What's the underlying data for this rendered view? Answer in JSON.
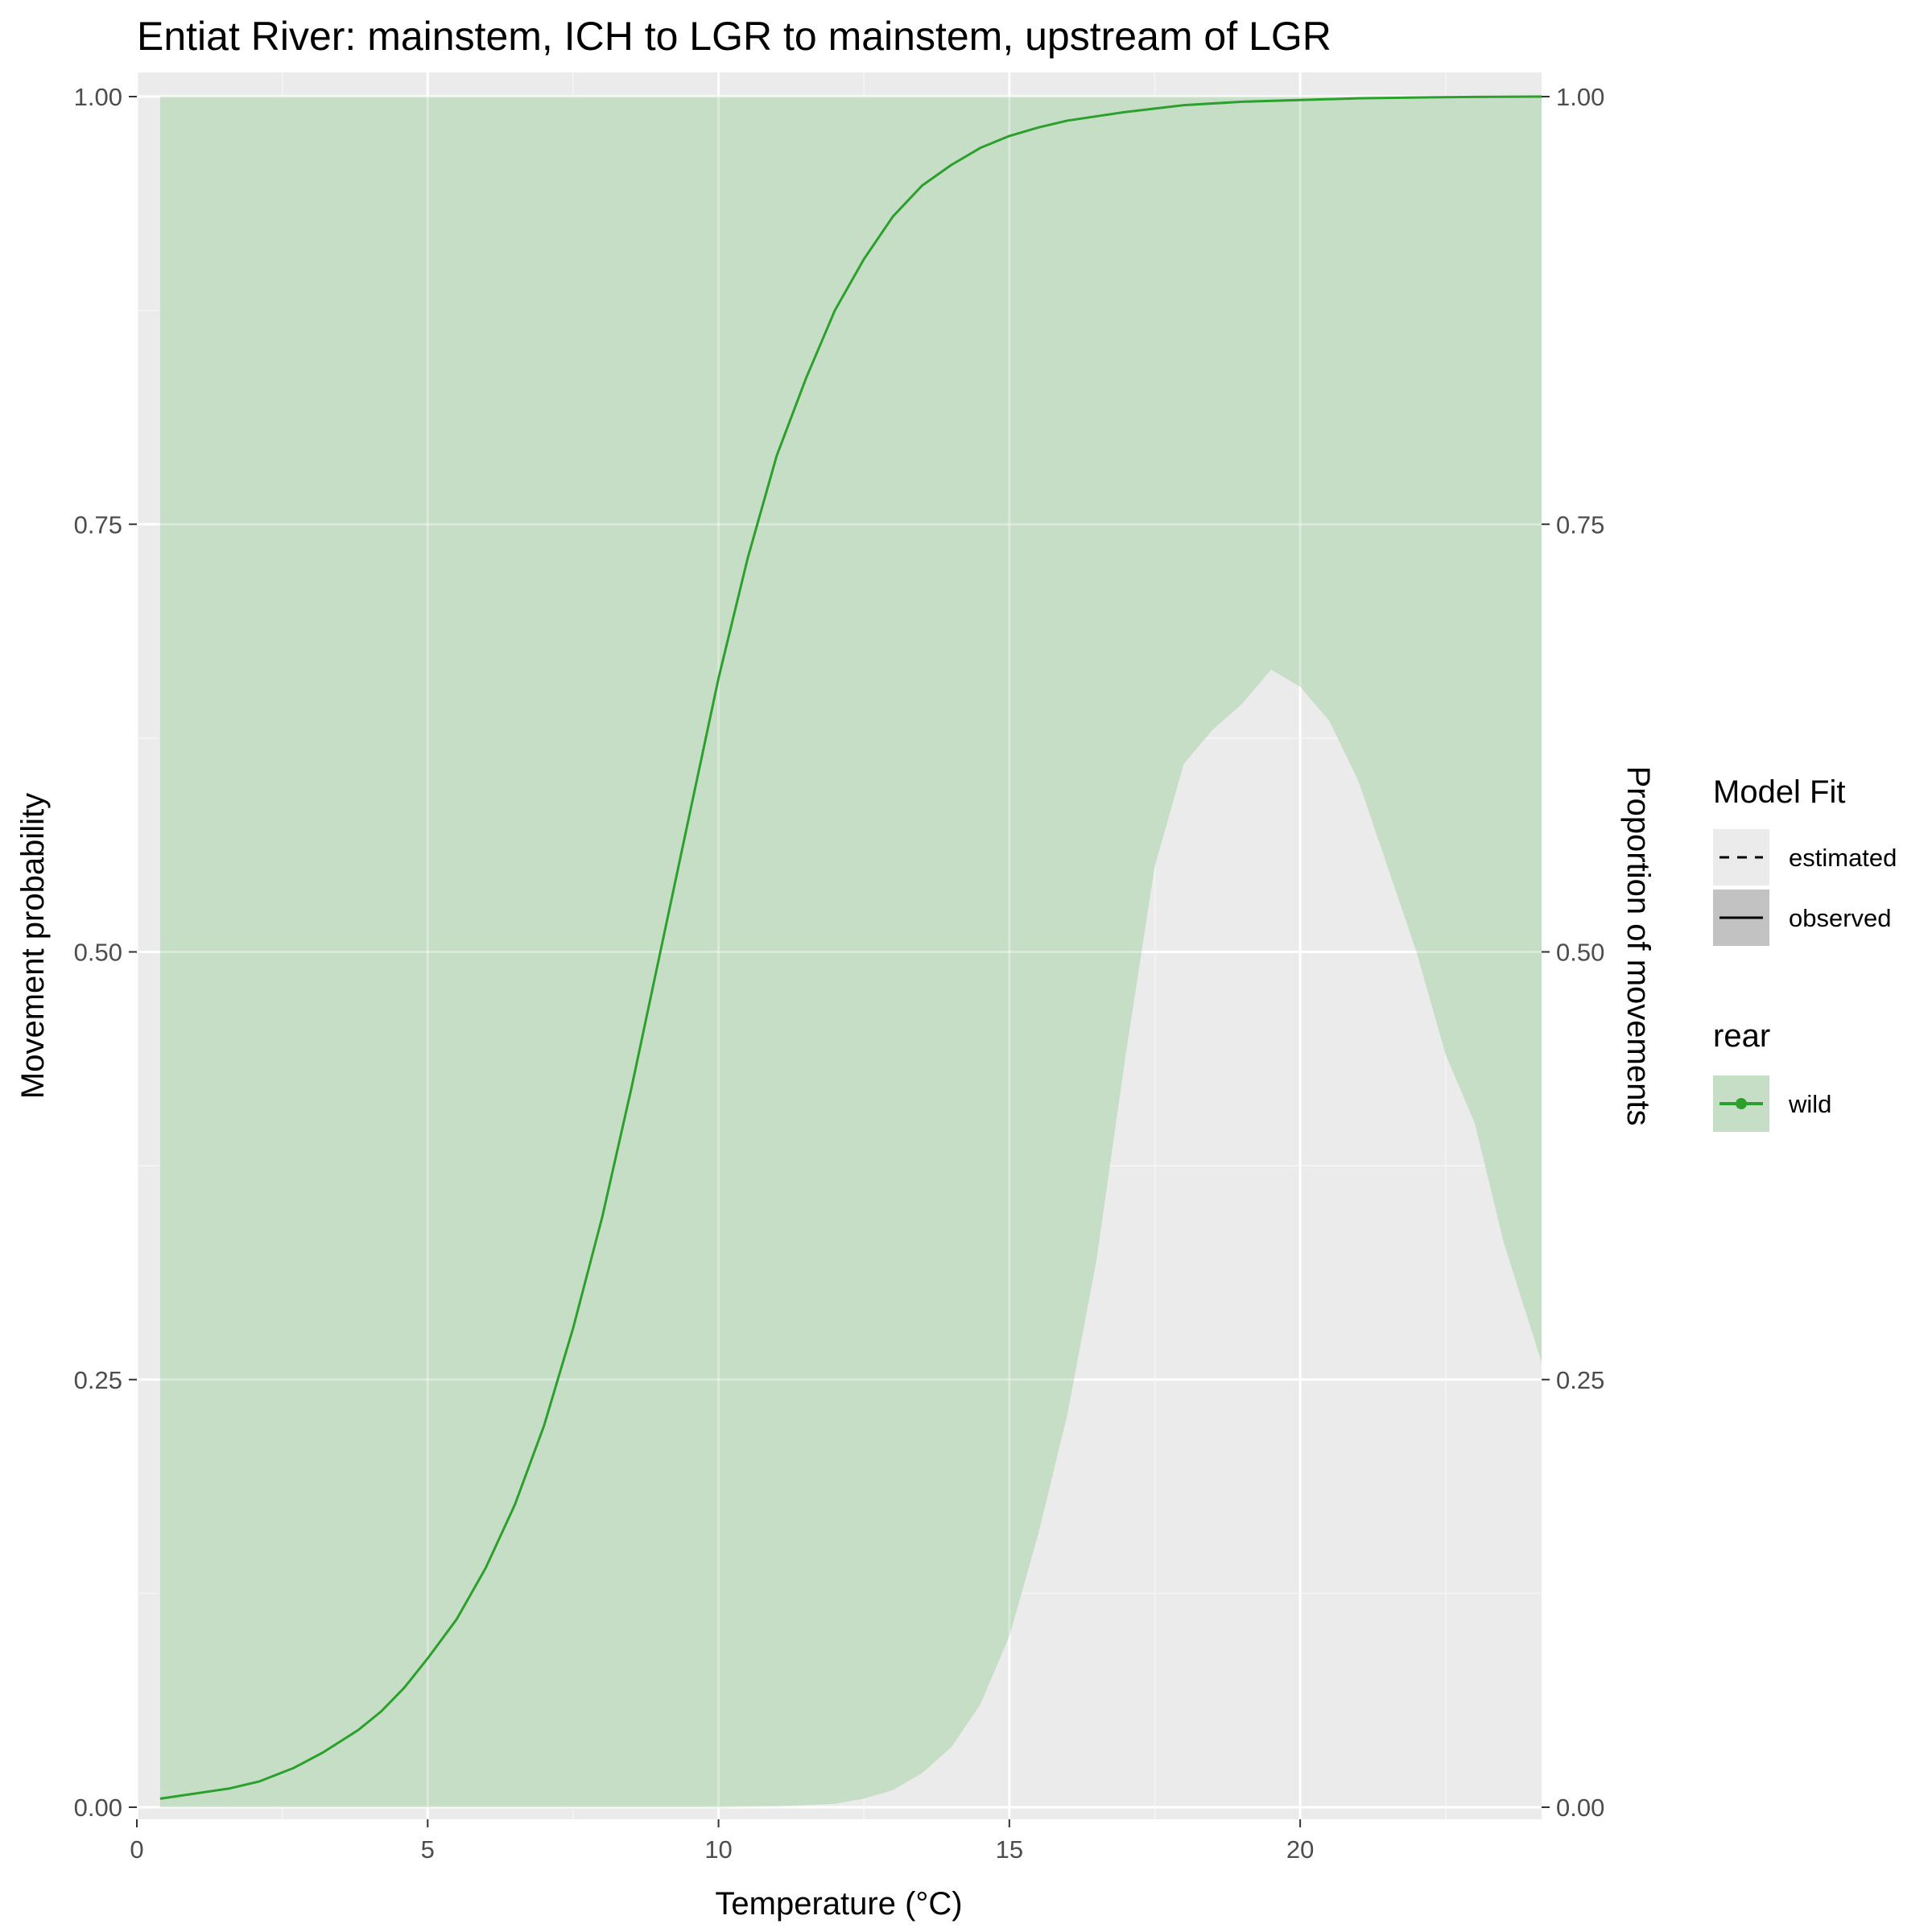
{
  "chart_data": {
    "type": "line",
    "title": "Entiat River: mainstem, ICH to LGR to mainstem, upstream of LGR",
    "xlabel": "Temperature (°C)",
    "ylabel": "Movement probability",
    "y2label": "Proportion of movements",
    "xlim": [
      0,
      24.15
    ],
    "ylim": [
      0,
      1
    ],
    "y2lim": [
      0,
      1
    ],
    "x_ticks": [
      0,
      5,
      10,
      15,
      20
    ],
    "x_tick_labels": [
      "0",
      "5",
      "10",
      "15",
      "20"
    ],
    "y_ticks": [
      0,
      0.25,
      0.5,
      0.75,
      1
    ],
    "y_tick_labels": [
      "0.00",
      "0.25",
      "0.50",
      "0.75",
      "1.00"
    ],
    "y2_tick_labels": [
      "0.00",
      "0.25",
      "0.50",
      "0.75",
      "1.00"
    ],
    "grid": true,
    "legend_position": "right",
    "legends": [
      {
        "title": "Model Fit",
        "entries": [
          {
            "label": "estimated",
            "linetype": "dashed"
          },
          {
            "label": "observed",
            "linetype": "solid"
          }
        ]
      },
      {
        "title": "rear",
        "entries": [
          {
            "label": "wild",
            "color": "#2ca02c"
          }
        ]
      }
    ],
    "series": [
      {
        "role": "movement-probability",
        "model_fit": "observed",
        "color": "#2ca02c",
        "x": [
          0.4,
          1.0,
          1.6,
          2.1,
          2.7,
          3.2,
          3.8,
          4.2,
          4.6,
          5.0,
          5.5,
          6.0,
          6.5,
          7.0,
          7.5,
          8.0,
          8.5,
          9.0,
          9.5,
          10.0,
          10.5,
          11.0,
          11.5,
          12.0,
          12.5,
          13.0,
          13.5,
          14.0,
          14.5,
          15.0,
          15.5,
          16.0,
          17.0,
          18.0,
          19.0,
          20.0,
          21.0,
          22.0,
          23.0,
          24.15
        ],
        "y": [
          0.005,
          0.008,
          0.011,
          0.015,
          0.023,
          0.032,
          0.045,
          0.056,
          0.07,
          0.087,
          0.11,
          0.14,
          0.177,
          0.223,
          0.28,
          0.345,
          0.42,
          0.5,
          0.58,
          0.66,
          0.73,
          0.79,
          0.835,
          0.875,
          0.905,
          0.93,
          0.948,
          0.96,
          0.97,
          0.977,
          0.982,
          0.986,
          0.991,
          0.995,
          0.997,
          0.998,
          0.999,
          0.9995,
          0.9998,
          1.0
        ]
      }
    ],
    "area": {
      "role": "ribbon",
      "color": "#c6dec6",
      "x": [
        0.4,
        10.0,
        11.0,
        12.0,
        12.5,
        13.0,
        13.5,
        14.0,
        14.5,
        15.0,
        15.5,
        16.0,
        16.5,
        17.0,
        17.5,
        18.0,
        18.5,
        19.0,
        19.5,
        20.0,
        20.5,
        21.0,
        21.5,
        22.0,
        22.5,
        23.0,
        23.5,
        24.15
      ],
      "lower": [
        0.0,
        0.0,
        0.0005,
        0.002,
        0.005,
        0.01,
        0.02,
        0.035,
        0.06,
        0.1,
        0.16,
        0.23,
        0.32,
        0.44,
        0.55,
        0.61,
        0.63,
        0.645,
        0.665,
        0.655,
        0.635,
        0.6,
        0.55,
        0.5,
        0.44,
        0.4,
        0.33,
        0.26
      ],
      "upper": 1.0
    }
  }
}
